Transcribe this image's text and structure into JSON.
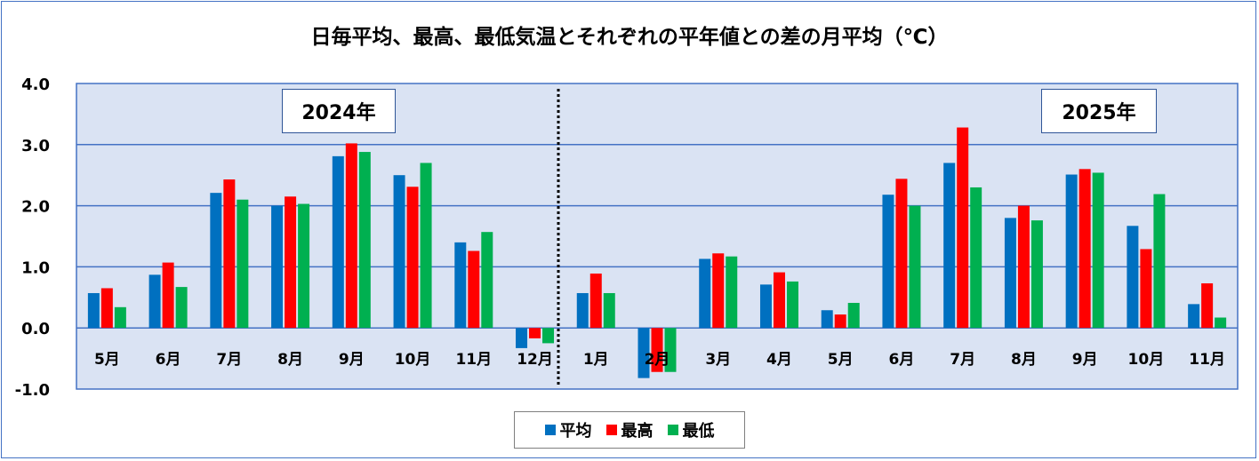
{
  "chart_data": {
    "type": "bar",
    "title": "日毎平均、最高、最低気温とそれぞれの平年値との差の月平均（℃）",
    "categories": [
      "5月",
      "6月",
      "7月",
      "8月",
      "9月",
      "10月",
      "11月",
      "12月",
      "1月",
      "2月",
      "3月",
      "4月",
      "5月",
      "6月",
      "7月",
      "8月",
      "9月",
      "10月",
      "11月"
    ],
    "series": [
      {
        "name": "平均",
        "color": "#0070c0",
        "values": [
          0.57,
          0.87,
          2.21,
          2.0,
          2.81,
          2.5,
          1.4,
          -0.33,
          0.57,
          -0.82,
          1.13,
          0.71,
          0.29,
          2.18,
          2.7,
          1.8,
          2.51,
          1.67,
          0.39
        ]
      },
      {
        "name": "最高",
        "color": "#ff0000",
        "values": [
          0.65,
          1.07,
          2.43,
          2.15,
          3.02,
          2.31,
          1.26,
          -0.17,
          0.89,
          -0.72,
          1.22,
          0.91,
          0.22,
          2.44,
          3.28,
          2.0,
          2.6,
          1.29,
          0.73
        ]
      },
      {
        "name": "最低",
        "color": "#00b050",
        "values": [
          0.34,
          0.67,
          2.1,
          2.03,
          2.88,
          2.7,
          1.57,
          -0.25,
          0.57,
          -0.72,
          1.17,
          0.76,
          0.41,
          2.0,
          2.3,
          1.76,
          2.54,
          2.19,
          0.17
        ]
      }
    ],
    "ylim": [
      -1.0,
      4.0
    ],
    "yticks": [
      "4.0",
      "3.0",
      "2.0",
      "1.0",
      "0.0",
      "-1.0"
    ],
    "grid": true,
    "legend_position": "bottom",
    "annotations": [
      "2024年",
      "2025年"
    ]
  }
}
